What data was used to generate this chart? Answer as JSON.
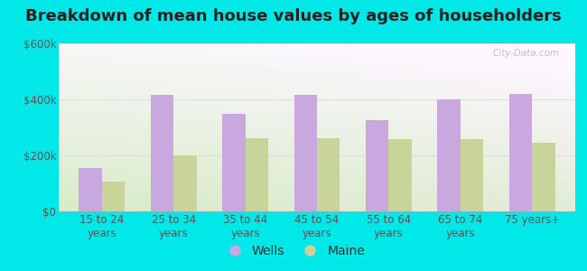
{
  "title": "Breakdown of mean house values by ages of householders",
  "categories": [
    "15 to 24\nyears",
    "25 to 34\nyears",
    "35 to 44\nyears",
    "45 to 54\nyears",
    "55 to 64\nyears",
    "65 to 74\nyears",
    "75 years+"
  ],
  "wells_values": [
    155000,
    415000,
    350000,
    415000,
    325000,
    400000,
    420000
  ],
  "maine_values": [
    105000,
    200000,
    262000,
    262000,
    258000,
    258000,
    245000
  ],
  "wells_color": "#c9a8e0",
  "maine_color": "#c8d49a",
  "background_color": "#00e8e8",
  "ylim": [
    0,
    600000
  ],
  "yticks": [
    0,
    200000,
    400000,
    600000
  ],
  "ytick_labels": [
    "$0",
    "$200k",
    "$400k",
    "$600k"
  ],
  "legend_wells": "Wells",
  "legend_maine": "Maine",
  "watermark": "City-Data.com",
  "title_fontsize": 13,
  "tick_fontsize": 8.5,
  "legend_fontsize": 10,
  "grid_color": "#dddddd",
  "tick_color": "#555555"
}
